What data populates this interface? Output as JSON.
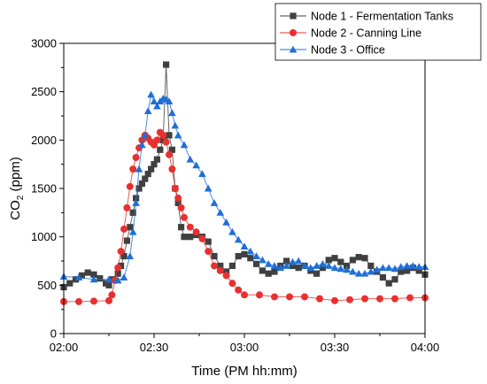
{
  "chart_data": {
    "type": "line",
    "xlabel": "Time (PM hh:mm)",
    "ylabel_main": "CO",
    "ylabel_sub": "2",
    "ylabel_unit": " (ppm)",
    "xlim": [
      0,
      120
    ],
    "ylim": [
      0,
      3000
    ],
    "x_ticks": [
      {
        "value": 0,
        "label": "02:00"
      },
      {
        "value": 30,
        "label": "02:30"
      },
      {
        "value": 60,
        "label": "03:00"
      },
      {
        "value": 90,
        "label": "03:30"
      },
      {
        "value": 120,
        "label": "04:00"
      }
    ],
    "y_ticks": [
      0,
      500,
      1000,
      1500,
      2000,
      2500,
      3000
    ],
    "legend_position": "top-right",
    "grid": false,
    "series": [
      {
        "name": "Node 1 - Fermentation Tanks",
        "color": "#404040",
        "marker": "square",
        "points": [
          [
            0,
            480
          ],
          [
            2,
            520
          ],
          [
            4,
            560
          ],
          [
            6,
            600
          ],
          [
            8,
            630
          ],
          [
            10,
            610
          ],
          [
            12,
            570
          ],
          [
            14,
            520
          ],
          [
            15,
            500
          ],
          [
            16,
            560
          ],
          [
            18,
            620
          ],
          [
            19,
            700
          ],
          [
            20,
            800
          ],
          [
            21,
            960
          ],
          [
            22,
            1100
          ],
          [
            23,
            1250
          ],
          [
            24,
            1400
          ],
          [
            25,
            1500
          ],
          [
            26,
            1550
          ],
          [
            27,
            1600
          ],
          [
            28,
            1650
          ],
          [
            29,
            1700
          ],
          [
            30,
            1750
          ],
          [
            31,
            1800
          ],
          [
            32,
            1900
          ],
          [
            33,
            2000
          ],
          [
            34,
            2780
          ],
          [
            35,
            2050
          ],
          [
            36,
            1900
          ],
          [
            37,
            1500
          ],
          [
            38,
            1350
          ],
          [
            39,
            1100
          ],
          [
            40,
            1000
          ],
          [
            42,
            1000
          ],
          [
            44,
            1020
          ],
          [
            46,
            1000
          ],
          [
            48,
            950
          ],
          [
            50,
            800
          ],
          [
            52,
            700
          ],
          [
            54,
            640
          ],
          [
            56,
            700
          ],
          [
            58,
            800
          ],
          [
            60,
            820
          ],
          [
            62,
            780
          ],
          [
            64,
            720
          ],
          [
            66,
            650
          ],
          [
            68,
            620
          ],
          [
            70,
            640
          ],
          [
            72,
            700
          ],
          [
            74,
            750
          ],
          [
            76,
            700
          ],
          [
            78,
            680
          ],
          [
            80,
            700
          ],
          [
            82,
            650
          ],
          [
            84,
            620
          ],
          [
            86,
            680
          ],
          [
            88,
            760
          ],
          [
            90,
            780
          ],
          [
            92,
            740
          ],
          [
            94,
            700
          ],
          [
            96,
            760
          ],
          [
            98,
            790
          ],
          [
            100,
            780
          ],
          [
            102,
            700
          ],
          [
            104,
            640
          ],
          [
            106,
            580
          ],
          [
            108,
            520
          ],
          [
            110,
            560
          ],
          [
            112,
            640
          ],
          [
            114,
            650
          ],
          [
            116,
            680
          ],
          [
            118,
            650
          ],
          [
            120,
            610
          ]
        ]
      },
      {
        "name": "Node 2 - Canning Line",
        "color": "#e83030",
        "marker": "circle",
        "points": [
          [
            0,
            330
          ],
          [
            5,
            330
          ],
          [
            10,
            335
          ],
          [
            15,
            340
          ],
          [
            16,
            400
          ],
          [
            17,
            550
          ],
          [
            18,
            680
          ],
          [
            19,
            850
          ],
          [
            20,
            1080
          ],
          [
            21,
            1300
          ],
          [
            22,
            1520
          ],
          [
            23,
            1700
          ],
          [
            24,
            1820
          ],
          [
            25,
            1920
          ],
          [
            26,
            2000
          ],
          [
            27,
            2050
          ],
          [
            28,
            2020
          ],
          [
            29,
            1980
          ],
          [
            30,
            1950
          ],
          [
            31,
            2000
          ],
          [
            32,
            2080
          ],
          [
            33,
            2050
          ],
          [
            34,
            1980
          ],
          [
            35,
            1850
          ],
          [
            36,
            1700
          ],
          [
            37,
            1500
          ],
          [
            38,
            1400
          ],
          [
            39,
            1300
          ],
          [
            40,
            1200
          ],
          [
            42,
            1100
          ],
          [
            44,
            1050
          ],
          [
            46,
            980
          ],
          [
            48,
            850
          ],
          [
            50,
            700
          ],
          [
            52,
            650
          ],
          [
            54,
            600
          ],
          [
            56,
            520
          ],
          [
            58,
            450
          ],
          [
            60,
            400
          ],
          [
            65,
            400
          ],
          [
            70,
            380
          ],
          [
            75,
            380
          ],
          [
            80,
            380
          ],
          [
            85,
            360
          ],
          [
            90,
            340
          ],
          [
            95,
            350
          ],
          [
            100,
            360
          ],
          [
            105,
            360
          ],
          [
            110,
            360
          ],
          [
            115,
            370
          ],
          [
            120,
            370
          ]
        ]
      },
      {
        "name": "Node 3 - Office",
        "color": "#1f6fd6",
        "marker": "triangle",
        "points": [
          [
            0,
            590
          ],
          [
            5,
            580
          ],
          [
            10,
            560
          ],
          [
            15,
            560
          ],
          [
            18,
            550
          ],
          [
            20,
            580
          ],
          [
            22,
            800
          ],
          [
            23,
            1050
          ],
          [
            24,
            1350
          ],
          [
            25,
            1700
          ],
          [
            26,
            1950
          ],
          [
            27,
            2050
          ],
          [
            28,
            2300
          ],
          [
            29,
            2470
          ],
          [
            30,
            2400
          ],
          [
            31,
            2350
          ],
          [
            32,
            2400
          ],
          [
            33,
            2430
          ],
          [
            34,
            2420
          ],
          [
            35,
            2400
          ],
          [
            36,
            2280
          ],
          [
            37,
            2150
          ],
          [
            38,
            2050
          ],
          [
            40,
            1950
          ],
          [
            42,
            1800
          ],
          [
            44,
            1740
          ],
          [
            46,
            1650
          ],
          [
            48,
            1500
          ],
          [
            50,
            1350
          ],
          [
            52,
            1250
          ],
          [
            54,
            1150
          ],
          [
            56,
            1050
          ],
          [
            58,
            970
          ],
          [
            60,
            900
          ],
          [
            62,
            850
          ],
          [
            64,
            800
          ],
          [
            66,
            760
          ],
          [
            68,
            720
          ],
          [
            70,
            700
          ],
          [
            72,
            680
          ],
          [
            74,
            700
          ],
          [
            76,
            740
          ],
          [
            78,
            750
          ],
          [
            80,
            700
          ],
          [
            82,
            680
          ],
          [
            84,
            700
          ],
          [
            86,
            720
          ],
          [
            88,
            700
          ],
          [
            90,
            680
          ],
          [
            92,
            670
          ],
          [
            94,
            660
          ],
          [
            96,
            640
          ],
          [
            98,
            620
          ],
          [
            100,
            620
          ],
          [
            102,
            640
          ],
          [
            104,
            660
          ],
          [
            106,
            680
          ],
          [
            108,
            680
          ],
          [
            110,
            670
          ],
          [
            112,
            690
          ],
          [
            114,
            700
          ],
          [
            116,
            700
          ],
          [
            118,
            690
          ],
          [
            120,
            690
          ]
        ]
      }
    ]
  }
}
